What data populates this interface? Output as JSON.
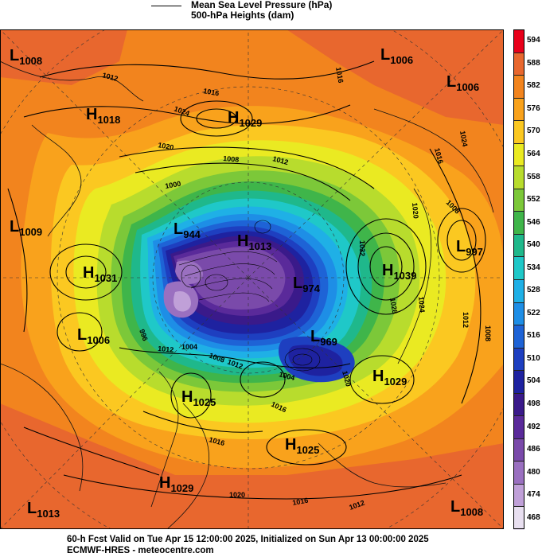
{
  "legend": {
    "items": [
      {
        "label": "Mean Sea Level Pressure (hPa)"
      },
      {
        "label": "500-hPa Heights (dam)"
      }
    ]
  },
  "colorbar": {
    "levels": [
      "594",
      "588",
      "582",
      "576",
      "570",
      "564",
      "558",
      "552",
      "546",
      "540",
      "534",
      "528",
      "522",
      "516",
      "510",
      "504",
      "498",
      "492",
      "486",
      "480",
      "474",
      "468"
    ],
    "colors": [
      "#e8001a",
      "#e8672e",
      "#f2841e",
      "#f9a21c",
      "#fbc821",
      "#eaea22",
      "#b8dc2d",
      "#7cc839",
      "#3fb54a",
      "#1fb88b",
      "#1fc8c8",
      "#1fb0e6",
      "#1e8ee6",
      "#1e63d6",
      "#1e3fc0",
      "#1e22a0",
      "#3a1a8a",
      "#5a2a9a",
      "#7a4aaa",
      "#9a70c0",
      "#c0a0d8",
      "#e8dff0"
    ]
  },
  "systems": [
    {
      "type": "L",
      "value": "1008"
    },
    {
      "type": "L",
      "value": "1006"
    },
    {
      "type": "L",
      "value": "1006"
    },
    {
      "type": "H",
      "value": "1018"
    },
    {
      "type": "H",
      "value": "1029"
    },
    {
      "type": "L",
      "value": "1009"
    },
    {
      "type": "L",
      "value": "944"
    },
    {
      "type": "H",
      "value": "1013"
    },
    {
      "type": "H",
      "value": "1031"
    },
    {
      "type": "H",
      "value": "1039"
    },
    {
      "type": "L",
      "value": "997"
    },
    {
      "type": "L",
      "value": "974"
    },
    {
      "type": "L",
      "value": "1006"
    },
    {
      "type": "L",
      "value": "969"
    },
    {
      "type": "H",
      "value": "1025"
    },
    {
      "type": "H",
      "value": "1029"
    },
    {
      "type": "H",
      "value": "1025"
    },
    {
      "type": "H",
      "value": "1029"
    },
    {
      "type": "L",
      "value": "1013"
    },
    {
      "type": "L",
      "value": "1008"
    }
  ],
  "isobar_labels": [
    "1012",
    "1016",
    "1024",
    "1020",
    "1008",
    "1012",
    "1000",
    "1016",
    "1024",
    "1016",
    "1020",
    "1024",
    "1012",
    "1008",
    "1004",
    "1012",
    "1016",
    "1004",
    "1020",
    "1016",
    "1012",
    "1008",
    "1032",
    "1028",
    "1008",
    "1016",
    "1012",
    "996",
    "1020"
  ],
  "footer": {
    "line1": "60-h Fcst Valid on Tue Apr 15 12:00:00 2025, Initialized on Sun Apr 13 00:00:00 2025",
    "line2": "ECMWF-HRES - meteocentre.com"
  }
}
